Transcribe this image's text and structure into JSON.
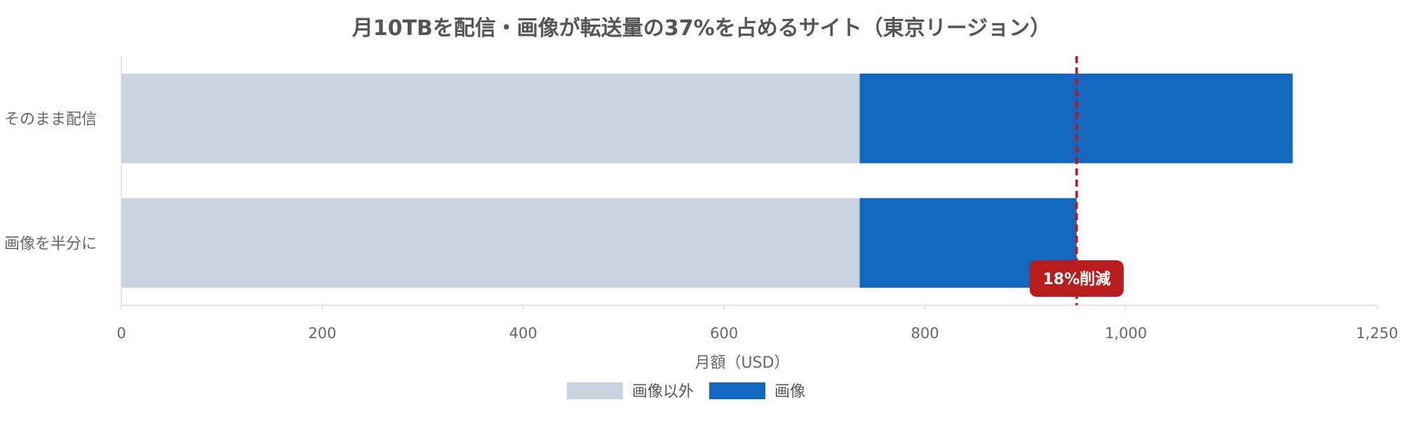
{
  "chart_data": {
    "type": "bar",
    "orientation": "horizontal",
    "stacked": true,
    "title": "月10TBを配信・画像が転送量の37%を占めるサイト（東京リージョン）",
    "xlabel": "月額（USD）",
    "ylabel": "",
    "xlim": [
      0,
      1250
    ],
    "xticks": [
      0,
      200,
      400,
      600,
      800,
      1000,
      1250
    ],
    "xtick_labels": [
      "0",
      "200",
      "400",
      "600",
      "800",
      "1,000",
      "1,250"
    ],
    "categories": [
      "そのまま配信",
      "画像を半分に"
    ],
    "series": [
      {
        "name": "画像以外",
        "color": "#cbd5e1",
        "values": [
          735,
          735
        ]
      },
      {
        "name": "画像",
        "color": "#1367be",
        "values": [
          431,
          216
        ]
      }
    ],
    "reference_line": {
      "x": 951,
      "color": "#c0151b",
      "style": "dashed"
    },
    "annotation": {
      "text": "18%削減",
      "x": 951,
      "color": "#b91c1c"
    },
    "legend_position": "bottom-center",
    "grid": false
  }
}
